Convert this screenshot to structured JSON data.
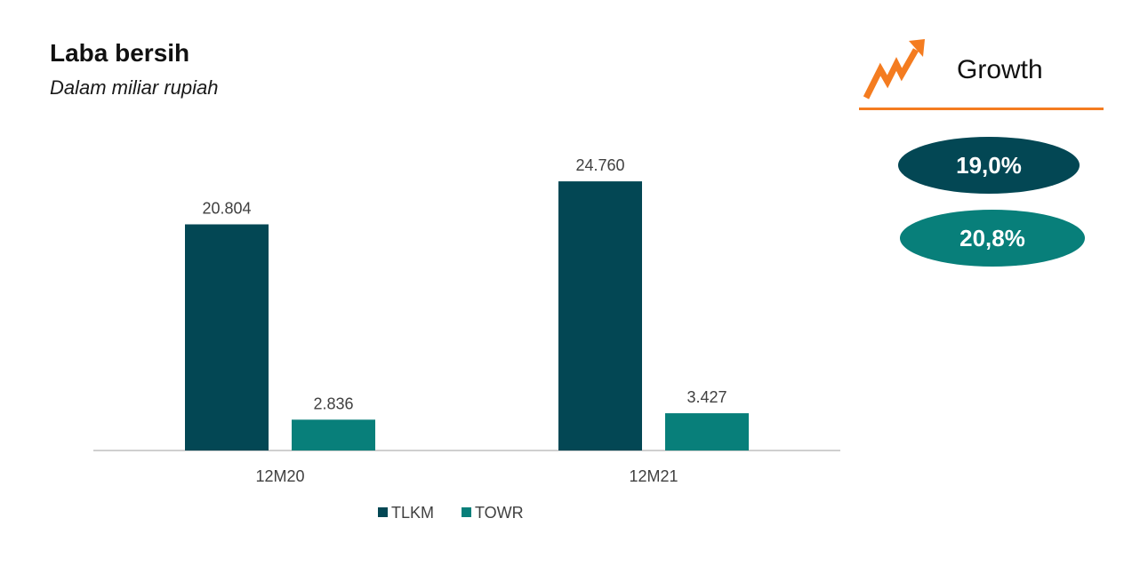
{
  "colors": {
    "tlkm": "#034754",
    "towr": "#087f7a",
    "axis": "#bfbfbf",
    "accent": "#f47c20",
    "label": "#404040"
  },
  "growth": {
    "icon": "trending-up-arrow-icon",
    "title": "Growth",
    "values": [
      {
        "label": "19,0%",
        "color": "#034754"
      },
      {
        "label": "20,8%",
        "color": "#087f7a"
      }
    ]
  },
  "chart_data": {
    "type": "bar",
    "title": "Laba bersih",
    "subtitle": "Dalam miliar rupiah",
    "categories": [
      "12M20",
      "12M21"
    ],
    "series": [
      {
        "name": "TLKM",
        "values": [
          20804,
          24760
        ],
        "labels": [
          "20.804",
          "24.760"
        ],
        "color": "#034754"
      },
      {
        "name": "TOWR",
        "values": [
          2836,
          3427
        ],
        "labels": [
          "2.836",
          "3.427"
        ],
        "color": "#087f7a"
      }
    ],
    "legend": "bottom-center",
    "grid": false,
    "ylim": [
      0,
      30000
    ]
  }
}
